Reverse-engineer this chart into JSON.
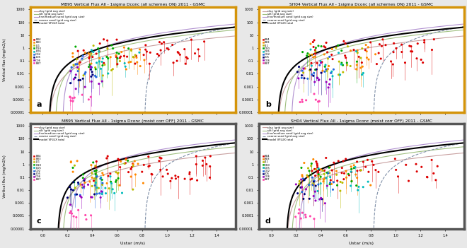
{
  "titles": [
    "MB95 Vertical Flux All - 1sigma Dconc (all schemes ON) 2011 - GSMC",
    "SH04 Vertical Flux All - 1sigma Dconc (all schemes ON) 2011 - GSMC",
    "MB95 Vertical Flux All - 1sigma Dconc (moist corr OFF) 2011 - GSMC",
    "SH04 Vertical Flux All - 1sigma Dconc (moist corr OFF) 2011 - GSMC"
  ],
  "panel_labels": [
    "a",
    "b",
    "c",
    "d"
  ],
  "xlabel": "Ustar (m/s)",
  "ylabel": "Vertical flux (mg/m2/s)",
  "xlim": [
    -0.1,
    1.55
  ],
  "ylim": [
    1e-05,
    1500
  ],
  "yticks": [
    1e-05,
    0.0001,
    0.001,
    0.01,
    0.1,
    1,
    10,
    100,
    1000
  ],
  "ytick_labels": [
    "0.00001",
    "0.0001",
    "0.001",
    "0.01",
    "0.1",
    "1",
    "10",
    "100",
    "1000"
  ],
  "xticks": [
    0.0,
    0.2,
    0.4,
    0.6,
    0.8,
    1.0,
    1.2,
    1.4
  ],
  "legend_lines": [
    {
      "label": "clay (grid avg size)",
      "color": "#c8a0a0",
      "lw": 0.8,
      "ls": "-"
    },
    {
      "label": "silt (grid avg size)",
      "color": "#a0c080",
      "lw": 0.8,
      "ls": "-"
    },
    {
      "label": "fine/medium sand (grid avg size)",
      "color": "#b090d0",
      "lw": 0.8,
      "ls": "-"
    },
    {
      "label": "coarse sand (grid avg size)",
      "color": "#8090a8",
      "lw": 0.8,
      "ls": "--"
    },
    {
      "label": "model VFLUX total",
      "color": "#000000",
      "lw": 1.5,
      "ls": "-"
    }
  ],
  "stations": [
    {
      "name": "B04",
      "color": "#dd0000"
    },
    {
      "name": "B03",
      "color": "#ff8800"
    },
    {
      "name": "J11",
      "color": "#bbbb00"
    },
    {
      "name": "D10",
      "color": "#00aa00"
    },
    {
      "name": "D05",
      "color": "#00bbbb"
    },
    {
      "name": "O02",
      "color": "#2266dd"
    },
    {
      "name": "L05",
      "color": "#000077"
    },
    {
      "name": "O06",
      "color": "#9900bb"
    },
    {
      "name": "B07",
      "color": "#ff44aa"
    }
  ],
  "border_color_ab": "#d4940a",
  "border_color_cd": "#555555",
  "bg_color": "#e8e8e8"
}
